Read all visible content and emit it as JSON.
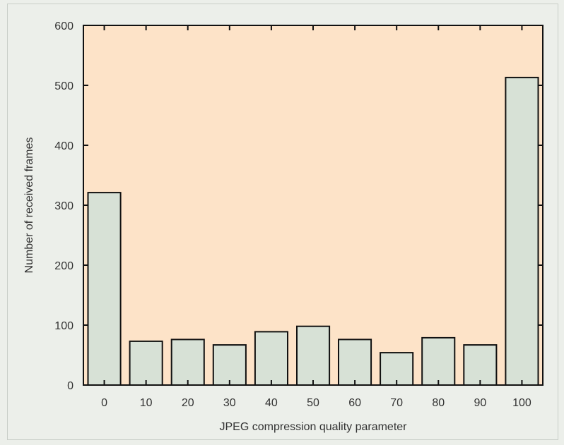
{
  "chart_data": {
    "type": "bar",
    "title": "",
    "xlabel": "JPEG compression quality parameter",
    "ylabel": "Number of received frames",
    "categories": [
      "0",
      "10",
      "20",
      "30",
      "40",
      "50",
      "60",
      "70",
      "80",
      "90",
      "100"
    ],
    "values": [
      321,
      73,
      76,
      67,
      89,
      98,
      76,
      54,
      79,
      67,
      513
    ],
    "ylim": [
      0,
      600
    ],
    "yticks": [
      "0",
      "100",
      "200",
      "300",
      "400",
      "500",
      "600"
    ],
    "grid": false,
    "legend": "none",
    "colors": {
      "bar_fill": "#d7e1d6",
      "plot_background": "#fde3c8",
      "panel_background": "#ecefea",
      "outline": "#111111"
    }
  }
}
